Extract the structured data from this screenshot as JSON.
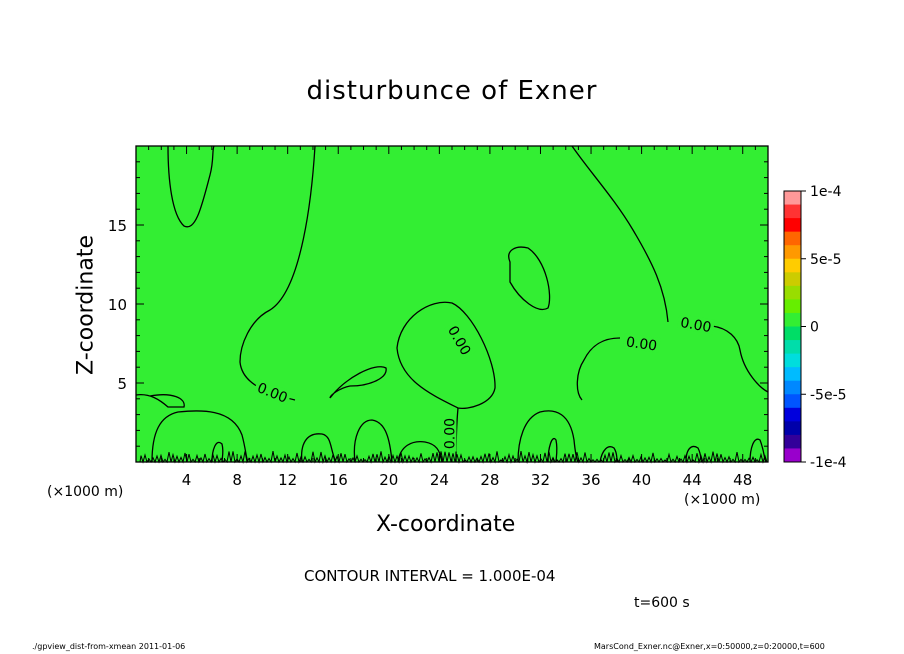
{
  "chart_data": {
    "type": "contour",
    "title": "disturbunce of Exner",
    "xlabel": "X-coordinate",
    "ylabel": "Z-coordinate",
    "x_unit": "(×1000 m)",
    "y_unit": "(×1000 m)",
    "xlim": [
      0,
      50
    ],
    "ylim": [
      0,
      20
    ],
    "x_ticks": [
      4,
      8,
      12,
      16,
      20,
      24,
      28,
      32,
      36,
      40,
      44,
      48
    ],
    "y_ticks": [
      5,
      10,
      15
    ],
    "field_color": "#33ee33",
    "contour_color": "#000000",
    "contour_labels": [
      {
        "text": "0.00",
        "x": 10.8,
        "z": 4.4
      },
      {
        "text": "0.00",
        "x": 25.6,
        "z": 7.7
      },
      {
        "text": "0.00",
        "x": 24.8,
        "z": 1.8
      },
      {
        "text": "0.00",
        "x": 40.0,
        "z": 7.5
      },
      {
        "text": "0.00",
        "x": 44.3,
        "z": 8.7
      }
    ],
    "colorbar": {
      "ticks": [
        "1e-4",
        "5e-5",
        "0",
        "-5e-5",
        "-1e-4"
      ],
      "colors": [
        "#ff9999",
        "#ff3333",
        "#ff0000",
        "#ff6600",
        "#ff9900",
        "#ffcc00",
        "#cccc00",
        "#99dd00",
        "#66ee00",
        "#33ee33",
        "#00dd66",
        "#00ddaa",
        "#00dddd",
        "#00bbff",
        "#0088ff",
        "#0055ff",
        "#0000dd",
        "#0000aa",
        "#330099",
        "#9900cc"
      ]
    }
  },
  "contour_interval": "CONTOUR INTERVAL = 1.000E-04",
  "time_label": "t=600  s",
  "footer_left": "./gpview_dist-from-xmean  2011-01-06",
  "footer_right": "MarsCond_Exner.nc@Exner,x=0:50000,z=0:20000,t=600"
}
